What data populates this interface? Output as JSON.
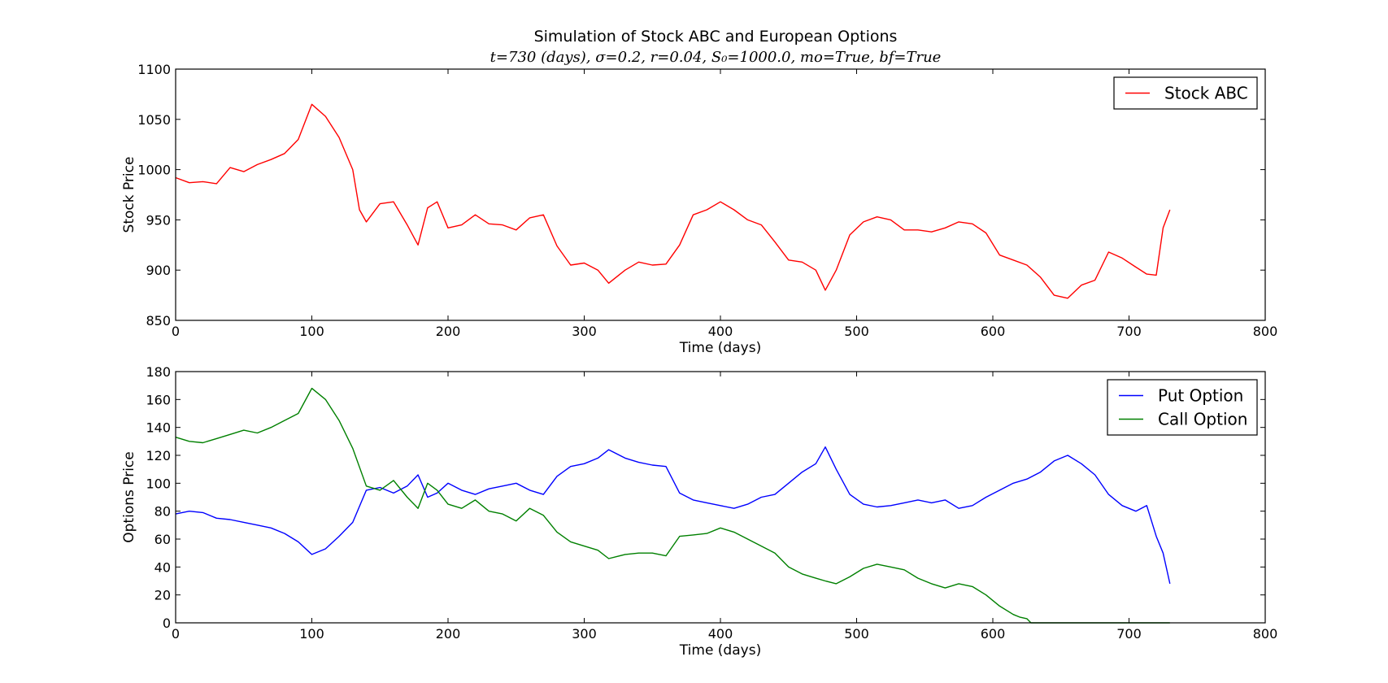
{
  "figure": {
    "title": "Simulation of Stock ABC and European Options",
    "subtitle": "t=730 (days), σ=0.2, r=0.04, S₀=1000.0, mo=True, bf=True"
  },
  "chart_data": [
    {
      "type": "line",
      "xlabel": "Time (days)",
      "ylabel": "Stock Price",
      "xlim": [
        0,
        800
      ],
      "ylim": [
        850,
        1100
      ],
      "xticks": [
        0,
        100,
        200,
        300,
        400,
        500,
        600,
        700,
        800
      ],
      "yticks": [
        850,
        900,
        950,
        1000,
        1050,
        1100
      ],
      "grid": false,
      "legend_position": "top-right",
      "series": [
        {
          "name": "Stock ABC",
          "color": "#ff0000",
          "x": [
            0,
            10,
            20,
            30,
            40,
            50,
            60,
            70,
            80,
            90,
            100,
            110,
            120,
            130,
            135,
            140,
            150,
            160,
            170,
            178,
            185,
            192,
            200,
            210,
            220,
            230,
            240,
            250,
            260,
            270,
            280,
            290,
            300,
            310,
            318,
            330,
            340,
            350,
            360,
            370,
            380,
            390,
            400,
            410,
            420,
            430,
            440,
            450,
            460,
            470,
            477,
            485,
            495,
            505,
            515,
            525,
            535,
            545,
            555,
            565,
            575,
            585,
            595,
            605,
            615,
            625,
            635,
            645,
            655,
            665,
            675,
            685,
            695,
            705,
            713,
            720,
            725,
            730
          ],
          "values": [
            992,
            987,
            988,
            986,
            1002,
            998,
            1005,
            1010,
            1016,
            1030,
            1065,
            1053,
            1032,
            1000,
            960,
            948,
            966,
            968,
            945,
            925,
            962,
            968,
            942,
            945,
            955,
            946,
            945,
            940,
            952,
            955,
            924,
            905,
            907,
            900,
            887,
            900,
            908,
            905,
            906,
            925,
            955,
            960,
            968,
            960,
            950,
            945,
            928,
            910,
            908,
            900,
            880,
            900,
            935,
            948,
            953,
            950,
            940,
            940,
            938,
            942,
            948,
            946,
            937,
            915,
            910,
            905,
            893,
            875,
            872,
            885,
            890,
            918,
            912,
            903,
            896,
            895,
            942,
            960
          ]
        }
      ]
    },
    {
      "type": "line",
      "xlabel": "Time (days)",
      "ylabel": "Options Price",
      "xlim": [
        0,
        800
      ],
      "ylim": [
        0,
        180
      ],
      "xticks": [
        0,
        100,
        200,
        300,
        400,
        500,
        600,
        700,
        800
      ],
      "yticks": [
        0,
        20,
        40,
        60,
        80,
        100,
        120,
        140,
        160,
        180
      ],
      "grid": false,
      "legend_position": "top-right",
      "series": [
        {
          "name": "Put Option",
          "color": "#0000ff",
          "x": [
            0,
            10,
            20,
            30,
            40,
            50,
            60,
            70,
            80,
            90,
            100,
            110,
            120,
            130,
            140,
            150,
            160,
            170,
            178,
            185,
            192,
            200,
            210,
            220,
            230,
            240,
            250,
            260,
            270,
            280,
            290,
            300,
            310,
            318,
            330,
            340,
            350,
            360,
            370,
            380,
            390,
            400,
            410,
            420,
            430,
            440,
            450,
            460,
            470,
            477,
            485,
            495,
            505,
            515,
            525,
            535,
            545,
            555,
            565,
            575,
            585,
            595,
            605,
            615,
            625,
            635,
            645,
            655,
            665,
            675,
            685,
            695,
            705,
            713,
            720,
            725,
            730
          ],
          "values": [
            78,
            80,
            79,
            75,
            74,
            72,
            70,
            68,
            64,
            58,
            49,
            53,
            62,
            72,
            95,
            97,
            93,
            98,
            106,
            90,
            93,
            100,
            95,
            92,
            96,
            98,
            100,
            95,
            92,
            105,
            112,
            114,
            118,
            124,
            118,
            115,
            113,
            112,
            93,
            88,
            86,
            84,
            82,
            85,
            90,
            92,
            100,
            108,
            114,
            126,
            110,
            92,
            85,
            83,
            84,
            86,
            88,
            86,
            88,
            82,
            84,
            90,
            95,
            100,
            103,
            108,
            116,
            120,
            114,
            106,
            92,
            84,
            80,
            84,
            62,
            50,
            28
          ]
        },
        {
          "name": "Call Option",
          "color": "#008000",
          "x": [
            0,
            10,
            20,
            30,
            40,
            50,
            60,
            70,
            80,
            90,
            100,
            110,
            120,
            130,
            140,
            150,
            160,
            170,
            178,
            185,
            192,
            200,
            210,
            220,
            230,
            240,
            250,
            260,
            270,
            280,
            290,
            300,
            310,
            318,
            330,
            340,
            350,
            360,
            370,
            380,
            390,
            400,
            410,
            420,
            430,
            440,
            450,
            460,
            470,
            477,
            485,
            495,
            505,
            515,
            525,
            535,
            545,
            555,
            565,
            575,
            585,
            595,
            605,
            615,
            620,
            625,
            628,
            640,
            660,
            680,
            700,
            720,
            730
          ],
          "values": [
            133,
            130,
            129,
            132,
            135,
            138,
            136,
            140,
            145,
            150,
            168,
            160,
            145,
            125,
            98,
            95,
            102,
            90,
            82,
            100,
            95,
            85,
            82,
            88,
            80,
            78,
            73,
            82,
            77,
            65,
            58,
            55,
            52,
            46,
            49,
            50,
            50,
            48,
            62,
            63,
            64,
            68,
            65,
            60,
            55,
            50,
            40,
            35,
            32,
            30,
            28,
            33,
            39,
            42,
            40,
            38,
            32,
            28,
            25,
            28,
            26,
            20,
            12,
            6,
            4,
            3,
            0,
            0,
            0,
            0,
            0,
            0,
            0
          ]
        }
      ]
    }
  ]
}
